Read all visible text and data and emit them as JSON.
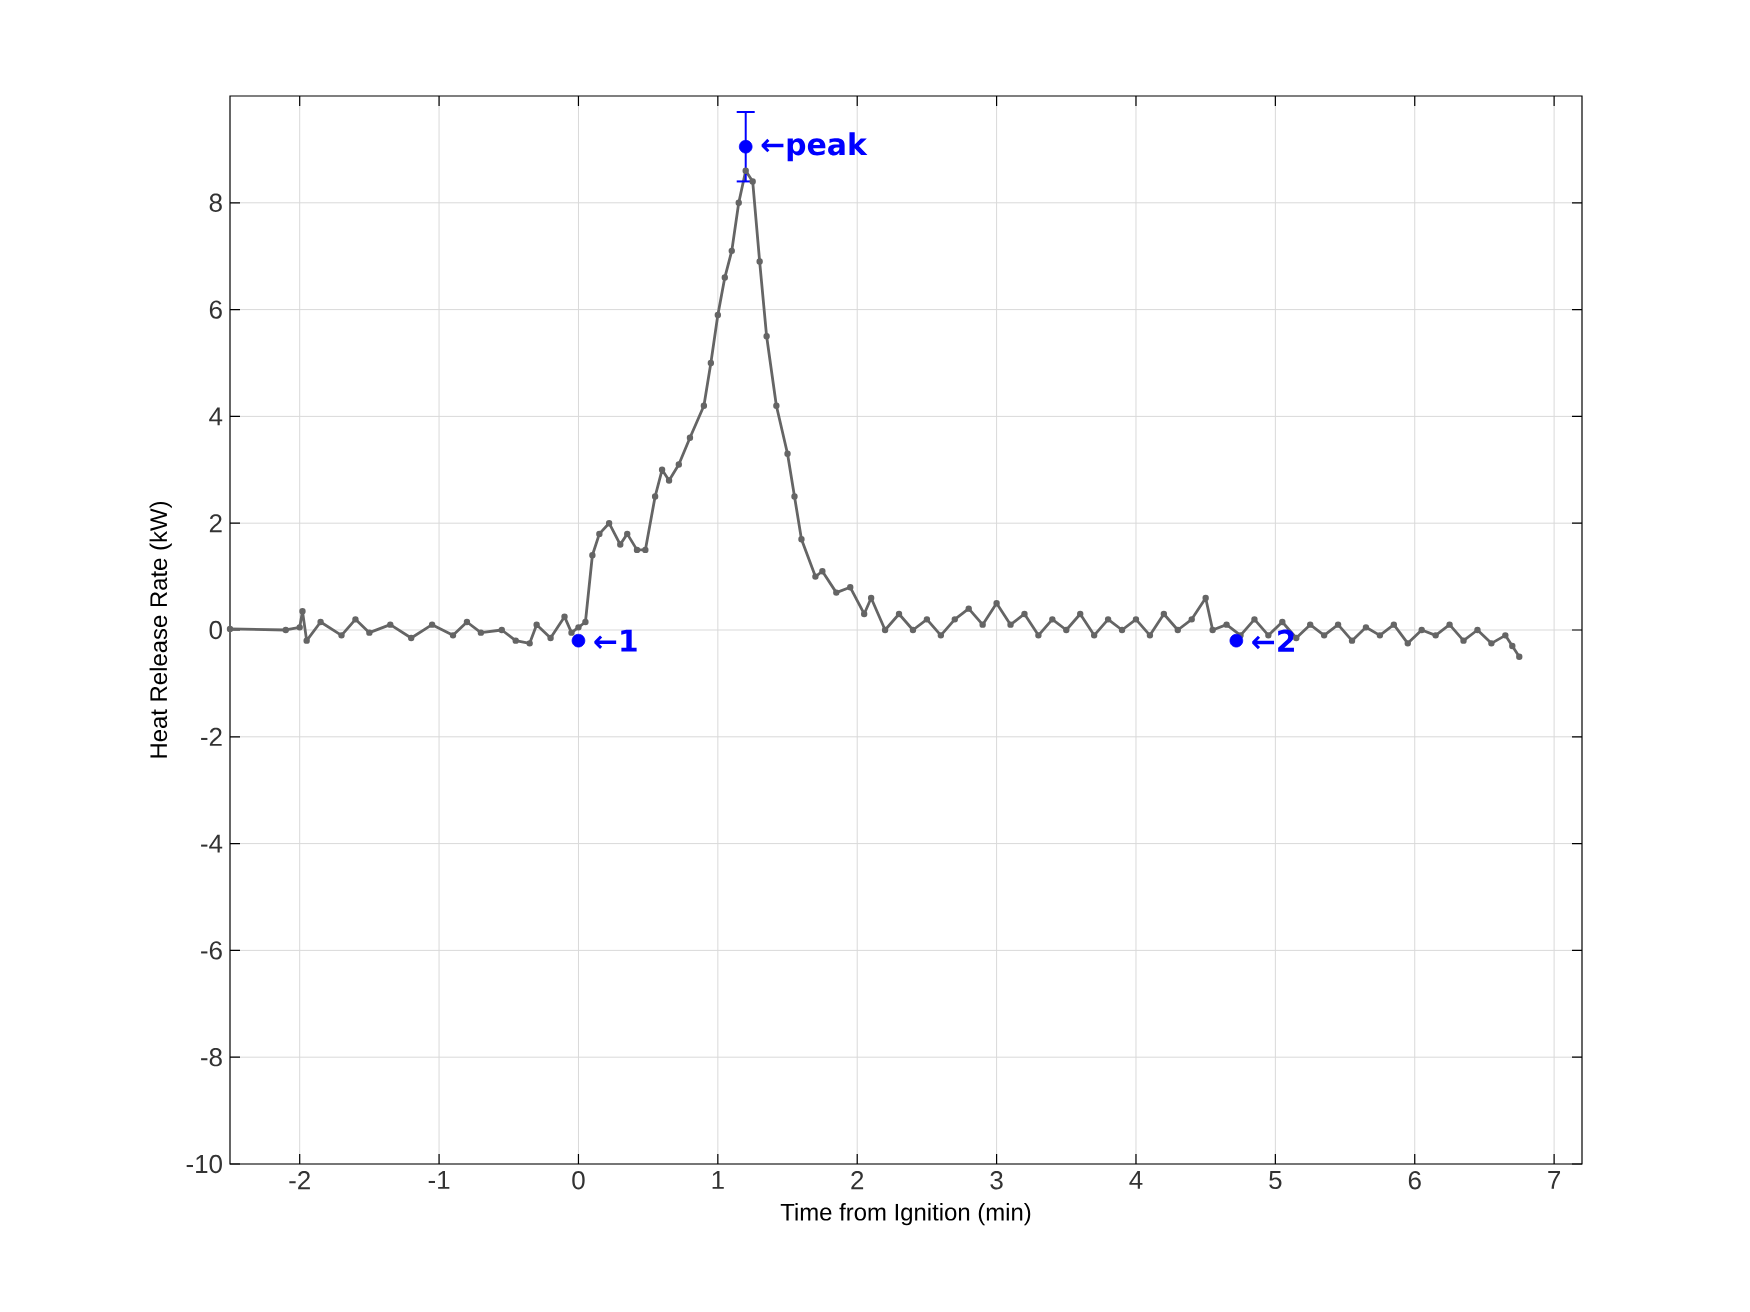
{
  "chart_data": {
    "type": "line",
    "xlabel": "Time from Ignition (min)",
    "ylabel": "Heat Release Rate (kW)",
    "xlim": [
      -2.5,
      7.2
    ],
    "ylim": [
      -10,
      10
    ],
    "xticks": [
      -2,
      -1,
      0,
      1,
      2,
      3,
      4,
      5,
      6,
      7
    ],
    "yticks": [
      -10,
      -8,
      -6,
      -4,
      -2,
      0,
      2,
      4,
      6,
      8
    ],
    "grid": true,
    "marker": "circle",
    "line_style": "solid",
    "series": [
      {
        "color": "#656565",
        "x": [
          -2.5,
          -2.1,
          -2.0,
          -1.98,
          -1.95,
          -1.85,
          -1.7,
          -1.6,
          -1.5,
          -1.35,
          -1.2,
          -1.05,
          -0.9,
          -0.8,
          -0.7,
          -0.55,
          -0.45,
          -0.35,
          -0.3,
          -0.2,
          -0.1,
          -0.05,
          0.0,
          0.05,
          0.1,
          0.15,
          0.22,
          0.3,
          0.35,
          0.42,
          0.48,
          0.55,
          0.6,
          0.65,
          0.72,
          0.8,
          0.9,
          0.95,
          1.0,
          1.05,
          1.1,
          1.15,
          1.2,
          1.25,
          1.3,
          1.35,
          1.42,
          1.5,
          1.55,
          1.6,
          1.7,
          1.75,
          1.85,
          1.95,
          2.05,
          2.1,
          2.2,
          2.3,
          2.4,
          2.5,
          2.6,
          2.7,
          2.8,
          2.9,
          3.0,
          3.1,
          3.2,
          3.3,
          3.4,
          3.5,
          3.6,
          3.7,
          3.8,
          3.9,
          4.0,
          4.1,
          4.2,
          4.3,
          4.4,
          4.5,
          4.55,
          4.65,
          4.75,
          4.85,
          4.95,
          5.05,
          5.15,
          5.25,
          5.35,
          5.45,
          5.55,
          5.65,
          5.75,
          5.85,
          5.95,
          6.05,
          6.15,
          6.25,
          6.35,
          6.45,
          6.55,
          6.65,
          6.7,
          6.75
        ],
        "values": [
          0.02,
          0.0,
          0.05,
          0.35,
          -0.2,
          0.15,
          -0.1,
          0.2,
          -0.05,
          0.1,
          -0.15,
          0.1,
          -0.1,
          0.15,
          -0.05,
          0.0,
          -0.2,
          -0.25,
          0.1,
          -0.15,
          0.25,
          -0.05,
          0.05,
          0.15,
          1.4,
          1.8,
          2.0,
          1.6,
          1.8,
          1.5,
          1.5,
          2.5,
          3.0,
          2.8,
          3.1,
          3.6,
          4.2,
          5.0,
          5.9,
          6.6,
          7.1,
          8.0,
          8.6,
          8.4,
          6.9,
          5.5,
          4.2,
          3.3,
          2.5,
          1.7,
          1.0,
          1.1,
          0.7,
          0.8,
          0.3,
          0.6,
          0.0,
          0.3,
          0.0,
          0.2,
          -0.1,
          0.2,
          0.4,
          0.1,
          0.5,
          0.1,
          0.3,
          -0.1,
          0.2,
          0.0,
          0.3,
          -0.1,
          0.2,
          0.0,
          0.2,
          -0.1,
          0.3,
          0.0,
          0.2,
          0.6,
          0.0,
          0.1,
          -0.1,
          0.2,
          -0.1,
          0.15,
          -0.15,
          0.1,
          -0.1,
          0.1,
          -0.2,
          0.05,
          -0.1,
          0.1,
          -0.25,
          0.0,
          -0.1,
          0.1,
          -0.2,
          0.0,
          -0.25,
          -0.1,
          -0.3,
          -0.5
        ]
      },
      {
        "type": "scatter",
        "color": "#0000ff",
        "x": [
          0,
          1.2,
          4.72
        ],
        "values": [
          -0.2,
          9.05,
          -0.2
        ],
        "errors": [
          null,
          [
            8.4,
            9.7
          ],
          null
        ]
      }
    ],
    "annotations": [
      {
        "text": "←1",
        "x": 0,
        "y": -0.2
      },
      {
        "text": "←peak",
        "x": 1.2,
        "y": 9.05
      },
      {
        "text": "←2",
        "x": 4.72,
        "y": -0.2
      }
    ]
  }
}
